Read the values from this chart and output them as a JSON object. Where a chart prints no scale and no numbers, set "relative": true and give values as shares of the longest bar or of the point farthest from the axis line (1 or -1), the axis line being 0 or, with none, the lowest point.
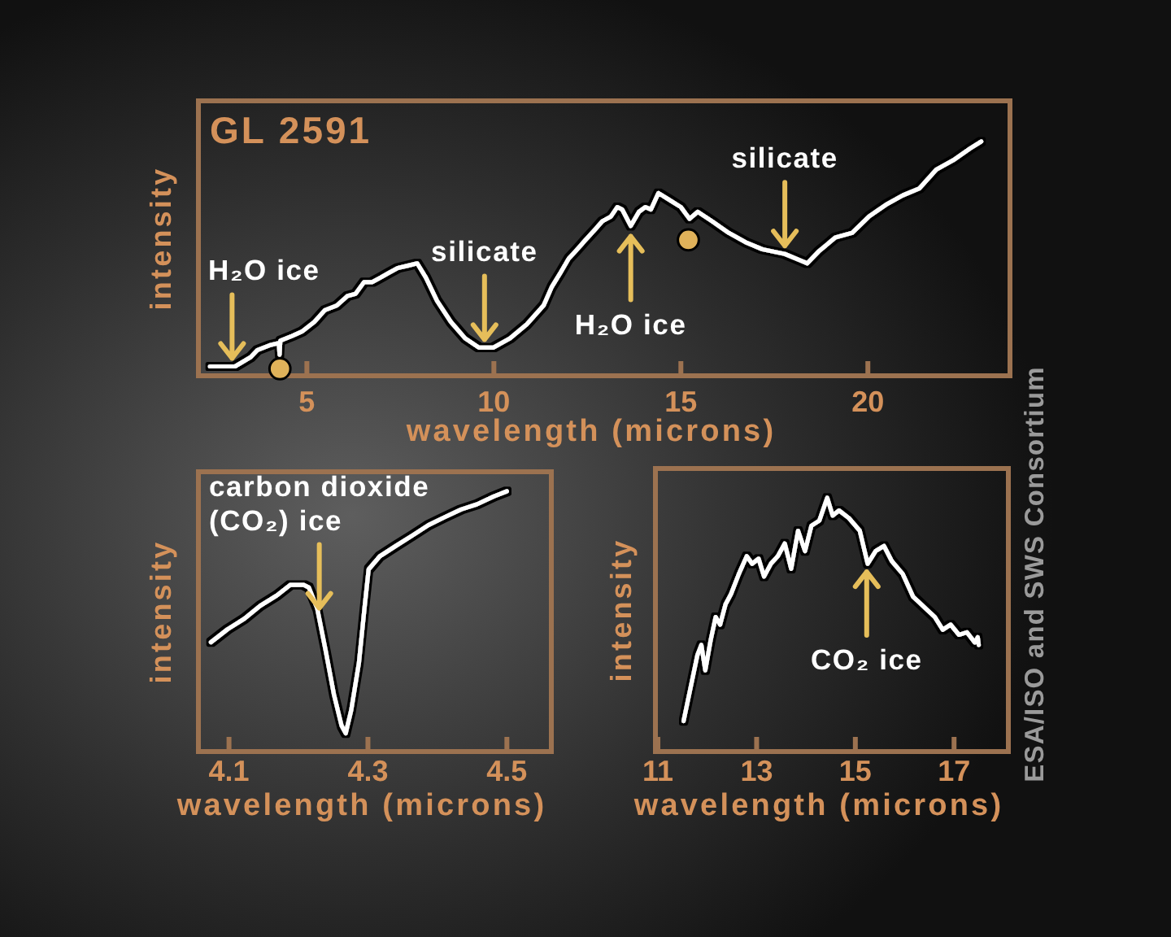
{
  "chart_data": [
    {
      "type": "line",
      "title": "GL 2591",
      "xlabel": "wavelength (microns)",
      "ylabel": "intensity",
      "relative": true,
      "xlim": [
        2.1,
        23.8
      ],
      "xticks": [
        5,
        10,
        15,
        20
      ],
      "x": [
        2.41,
        3.08,
        3.5,
        3.68,
        4.0,
        4.25,
        4.27,
        4.29,
        4.6,
        4.88,
        5.2,
        5.48,
        5.8,
        6.08,
        6.3,
        6.53,
        6.75,
        6.98,
        7.2,
        7.43,
        7.7,
        7.95,
        8.18,
        8.48,
        8.85,
        9.23,
        9.6,
        9.98,
        10.43,
        10.88,
        11.33,
        11.55,
        11.78,
        12.0,
        12.23,
        12.45,
        12.68,
        12.9,
        13.13,
        13.3,
        13.43,
        13.66,
        13.88,
        14.05,
        14.2,
        14.4,
        14.7,
        15.0,
        15.23,
        15.45,
        15.83,
        16.28,
        16.73,
        17.18,
        17.78,
        18.23,
        18.38,
        18.68,
        19.13,
        19.58,
        20.03,
        20.48,
        20.93,
        21.38,
        21.83,
        22.28,
        22.73,
        23.03
      ],
      "series": [
        {
          "color": "#ffffff",
          "values": [
            0.04,
            0.04,
            0.08,
            0.11,
            0.13,
            0.14,
            0.09,
            0.15,
            0.17,
            0.19,
            0.23,
            0.28,
            0.3,
            0.34,
            0.35,
            0.4,
            0.4,
            0.42,
            0.44,
            0.46,
            0.47,
            0.48,
            0.42,
            0.32,
            0.23,
            0.16,
            0.12,
            0.12,
            0.16,
            0.22,
            0.3,
            0.38,
            0.44,
            0.5,
            0.54,
            0.58,
            0.62,
            0.66,
            0.68,
            0.72,
            0.71,
            0.64,
            0.7,
            0.72,
            0.71,
            0.78,
            0.75,
            0.72,
            0.67,
            0.7,
            0.66,
            0.61,
            0.57,
            0.54,
            0.52,
            0.49,
            0.48,
            0.53,
            0.59,
            0.61,
            0.68,
            0.73,
            0.77,
            0.8,
            0.88,
            0.92,
            0.97,
            1.0
          ]
        },
        {
          "type": "scatter",
          "marker": "circle",
          "color": "#e0b25a",
          "x": [
            4.28,
            15.2
          ],
          "values": [
            0.03,
            0.58
          ]
        }
      ],
      "annotations": [
        {
          "text": "H₂O ice",
          "x": 3.0,
          "y": 0.04
        },
        {
          "text": "silicate",
          "x": 9.75,
          "y": 0.12
        },
        {
          "text": "H₂O ice",
          "x": 13.66,
          "y": 0.63
        },
        {
          "text": "silicate",
          "x": 17.78,
          "y": 0.52
        }
      ]
    },
    {
      "type": "line",
      "xlabel": "wavelength (microns)",
      "ylabel": "intensity",
      "relative": true,
      "xlim": [
        4.056,
        4.564
      ],
      "xticks": [
        4.1,
        4.3,
        4.5
      ],
      "x": [
        4.074,
        4.098,
        4.122,
        4.145,
        4.169,
        4.188,
        4.208,
        4.215,
        4.227,
        4.239,
        4.251,
        4.262,
        4.268,
        4.276,
        4.287,
        4.295,
        4.301,
        4.317,
        4.34,
        4.364,
        4.387,
        4.41,
        4.434,
        4.457,
        4.481,
        4.5
      ],
      "series": [
        {
          "color": "#ffffff",
          "values": [
            0.42,
            0.47,
            0.51,
            0.56,
            0.6,
            0.64,
            0.64,
            0.63,
            0.55,
            0.39,
            0.22,
            0.1,
            0.07,
            0.16,
            0.34,
            0.55,
            0.7,
            0.75,
            0.79,
            0.83,
            0.87,
            0.9,
            0.93,
            0.95,
            0.98,
            1.0
          ]
        }
      ],
      "annotations": [
        {
          "text": "carbon dioxide (CO₂) ice",
          "x": 4.23,
          "y": 0.52
        }
      ]
    },
    {
      "type": "line",
      "xlabel": "wavelength (microns)",
      "ylabel": "intensity",
      "relative": true,
      "xlim": [
        10.95,
        18.1
      ],
      "xticks": [
        11,
        13,
        15,
        17
      ],
      "x": [
        11.52,
        11.66,
        11.8,
        11.88,
        11.96,
        12.07,
        12.17,
        12.26,
        12.37,
        12.48,
        12.64,
        12.8,
        12.91,
        13.04,
        13.15,
        13.29,
        13.43,
        13.57,
        13.7,
        13.84,
        13.98,
        14.11,
        14.27,
        14.43,
        14.54,
        14.67,
        14.87,
        15.09,
        15.25,
        15.41,
        15.58,
        15.74,
        15.96,
        16.17,
        16.39,
        16.61,
        16.77,
        16.93,
        17.1,
        17.26,
        17.42,
        17.48,
        17.5
      ],
      "series": [
        {
          "color": "#ffffff",
          "values": [
            0.12,
            0.25,
            0.38,
            0.42,
            0.32,
            0.44,
            0.53,
            0.5,
            0.58,
            0.62,
            0.7,
            0.77,
            0.74,
            0.76,
            0.69,
            0.74,
            0.77,
            0.82,
            0.72,
            0.87,
            0.79,
            0.89,
            0.91,
            1.0,
            0.93,
            0.95,
            0.92,
            0.87,
            0.74,
            0.79,
            0.81,
            0.75,
            0.7,
            0.61,
            0.57,
            0.53,
            0.48,
            0.5,
            0.46,
            0.47,
            0.43,
            0.45,
            0.42
          ]
        }
      ],
      "annotations": [
        {
          "text": "CO₂ ice",
          "x": 15.23,
          "y": 0.74
        },
        "ESA/ISO and SWS Consortium"
      ]
    }
  ]
}
